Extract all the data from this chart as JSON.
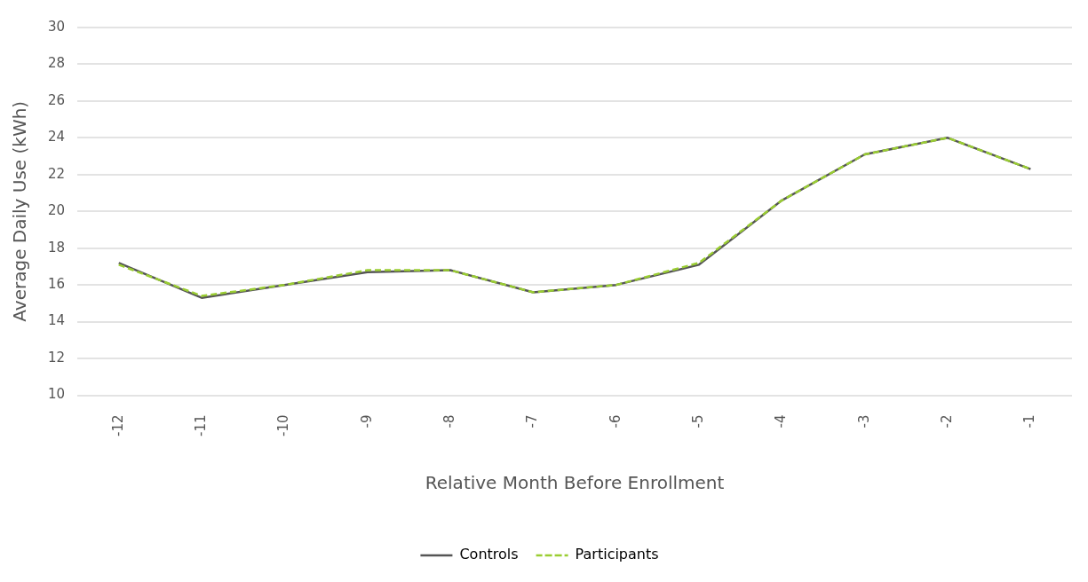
{
  "chart_data": {
    "type": "line",
    "xlabel": "Relative Month Before Enrollment",
    "ylabel": "Average Daily Use (kWh)",
    "categories": [
      "-12",
      "-11",
      "-10",
      "-9",
      "-8",
      "-7",
      "-6",
      "-5",
      "-4",
      "-3",
      "-2",
      "-1"
    ],
    "series": [
      {
        "name": "Controls",
        "color": "#555555",
        "line_style": "solid",
        "values": [
          17.2,
          15.3,
          16.0,
          16.7,
          16.8,
          15.6,
          16.0,
          17.1,
          20.6,
          23.1,
          24.0,
          22.3
        ]
      },
      {
        "name": "Participants",
        "color": "#9acd32",
        "line_style": "dashed",
        "values": [
          17.1,
          15.4,
          16.0,
          16.8,
          16.8,
          15.6,
          16.0,
          17.2,
          20.6,
          23.1,
          24.0,
          22.3
        ]
      }
    ],
    "ylim": [
      10,
      30
    ],
    "yticks": [
      10,
      12,
      14,
      16,
      18,
      20,
      22,
      24,
      26,
      28,
      30
    ],
    "grid": "y",
    "legend": "bottom",
    "marker": "none"
  }
}
